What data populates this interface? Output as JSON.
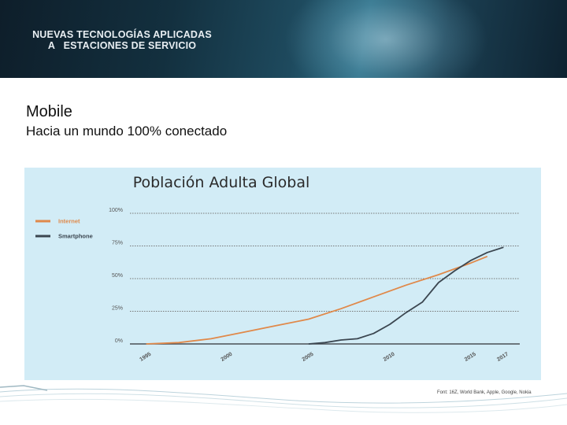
{
  "banner": {
    "title_line1": "NUEVAS TECNOLOGÍAS APLICADAS",
    "title_line2": "A   ESTACIONES DE SERVICIO"
  },
  "heading": "Mobile",
  "subheading": "Hacia un mundo 100% conectado",
  "source": "Font: 16Z, World Bank, Apple, Google, Nokia",
  "colors": {
    "internet": "#e0894a",
    "smartphone": "#3b4650",
    "panel": "#d2ecf6"
  },
  "chart_data": {
    "type": "line",
    "title": "Población Adulta Global",
    "xlabel": "",
    "ylabel": "",
    "xlim": [
      1994,
      2018
    ],
    "ylim": [
      0,
      100
    ],
    "grid": true,
    "legend_position": "top-left",
    "y_ticks": [
      0,
      25,
      50,
      75,
      100
    ],
    "y_tick_labels": [
      "0%",
      "25%",
      "50%",
      "75%",
      "100%"
    ],
    "x_ticks": [
      1995,
      2000,
      2005,
      2010,
      2015,
      2017
    ],
    "x_tick_labels": [
      "1995",
      "2000",
      "2005",
      "2010",
      "2015",
      "2017"
    ],
    "series": [
      {
        "name": "Internet",
        "x": [
          1995,
          1997,
          1999,
          2001,
          2003,
          2005,
          2007,
          2009,
          2011,
          2013,
          2015,
          2016
        ],
        "values": [
          0,
          1,
          4,
          9,
          14,
          19,
          27,
          36,
          45,
          53,
          62,
          67
        ]
      },
      {
        "name": "Smartphone",
        "x": [
          2005,
          2006,
          2007,
          2008,
          2009,
          2010,
          2011,
          2012,
          2013,
          2014,
          2015,
          2016,
          2017
        ],
        "values": [
          0,
          1,
          3,
          4,
          8,
          15,
          24,
          32,
          47,
          56,
          64,
          70,
          74
        ]
      }
    ]
  }
}
